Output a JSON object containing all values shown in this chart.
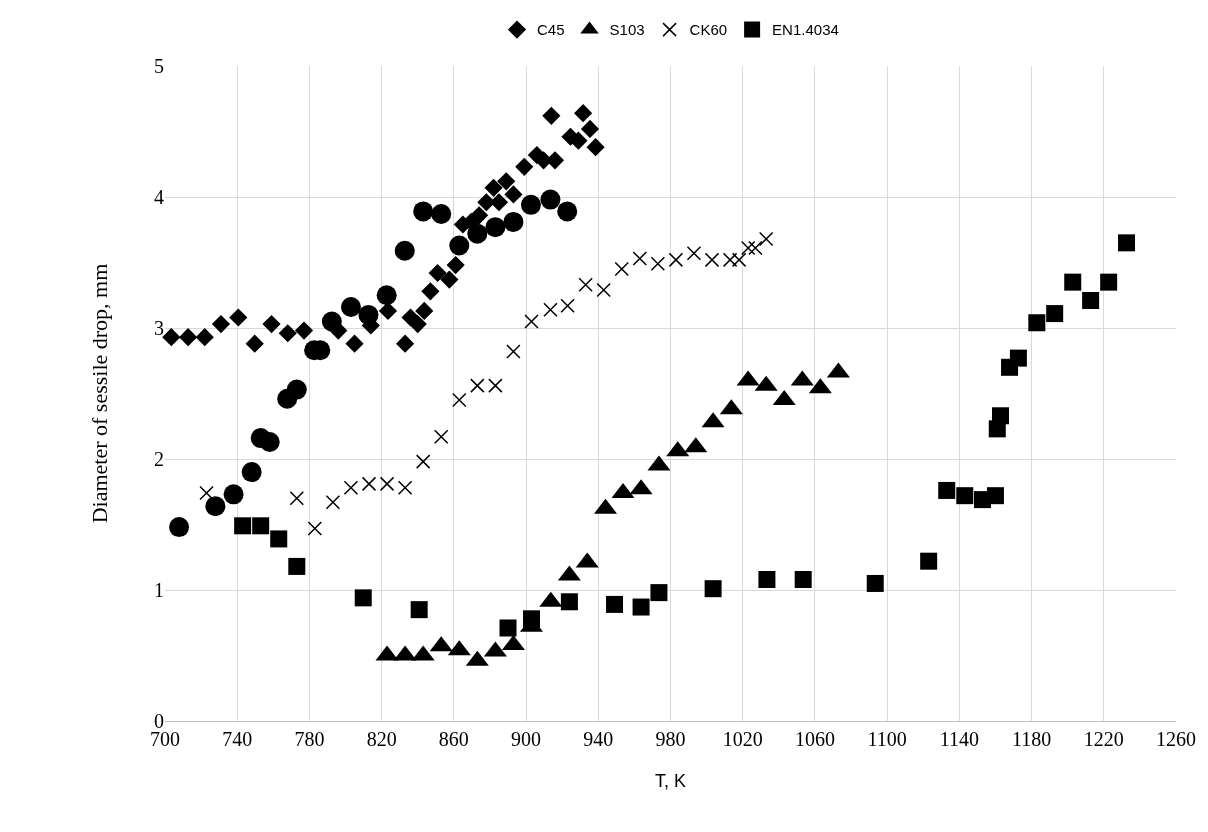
{
  "chart_data": {
    "type": "scatter",
    "xlabel": "T, K",
    "ylabel": "Diameter of sessile drop, mm",
    "xlim": [
      700,
      1260
    ],
    "xticks": [
      700,
      740,
      780,
      820,
      860,
      900,
      940,
      980,
      1020,
      1060,
      1100,
      1140,
      1180,
      1220,
      1260
    ],
    "ylim": [
      0,
      5
    ],
    "yticks": [
      0,
      1,
      2,
      3,
      4,
      5
    ],
    "grid": true,
    "legend": "top",
    "series": [
      {
        "color": "#000000",
        "marker": "circle",
        "x": [
          707.8,
          727.9,
          738,
          748,
          753,
          758,
          767.7,
          773,
          782.6,
          786,
          792.4,
          803,
          812.7,
          822.8,
          832.8,
          843,
          853,
          863,
          873,
          883,
          893,
          902.7,
          913.5,
          922.8
        ],
        "values": [
          1.48,
          1.64,
          1.73,
          1.9,
          2.16,
          2.13,
          2.46,
          2.53,
          2.83,
          2.83,
          3.05,
          3.16,
          3.1,
          3.25,
          3.59,
          3.89,
          3.87,
          3.63,
          3.72,
          3.77,
          3.81,
          3.94,
          3.98,
          3.89
        ]
      },
      {
        "name": "C45",
        "color": "#000000",
        "marker": "diamond",
        "x": [
          703.5,
          712.8,
          722,
          731,
          740.6,
          749.7,
          759,
          768,
          777,
          796,
          805,
          814,
          823.5,
          833,
          836,
          840,
          843.6,
          847,
          851,
          857.5,
          861,
          865,
          869.6,
          874,
          878,
          882,
          885,
          889,
          893,
          899,
          906,
          909.7,
          914,
          916,
          924.6,
          929,
          931.6,
          935.4,
          938.5
        ],
        "values": [
          2.93,
          2.93,
          2.93,
          3.03,
          3.08,
          2.88,
          3.03,
          2.96,
          2.98,
          2.98,
          2.88,
          3.02,
          3.13,
          2.88,
          3.08,
          3.03,
          3.13,
          3.28,
          3.42,
          3.37,
          3.48,
          3.79,
          3.81,
          3.86,
          3.96,
          4.07,
          3.96,
          4.12,
          4.02,
          4.23,
          4.32,
          4.28,
          4.62,
          4.28,
          4.46,
          4.43,
          4.64,
          4.52,
          4.38
        ]
      },
      {
        "name": "S103",
        "color": "#000000",
        "marker": "triangle",
        "x": [
          823,
          833,
          843,
          853,
          863,
          873,
          883,
          893,
          903,
          913.7,
          924,
          933.9,
          944,
          953.7,
          963.7,
          973.6,
          984,
          994,
          1003.6,
          1013.7,
          1023,
          1033,
          1043,
          1053,
          1063,
          1073
        ],
        "values": [
          0.5,
          0.5,
          0.5,
          0.57,
          0.54,
          0.46,
          0.53,
          0.58,
          0.72,
          0.91,
          1.11,
          1.21,
          1.62,
          1.74,
          1.77,
          1.95,
          2.06,
          2.09,
          2.28,
          2.38,
          2.6,
          2.56,
          2.45,
          2.6,
          2.54,
          2.66
        ]
      },
      {
        "name": "CK60",
        "color": "#000000",
        "marker": "cross",
        "x": [
          723,
          773,
          783,
          793,
          803,
          813,
          823,
          833,
          843,
          853,
          863,
          873,
          883,
          893,
          903,
          913.5,
          923,
          933,
          943,
          953,
          963,
          973,
          983,
          993,
          1003,
          1013,
          1018,
          1023,
          1027,
          1033
        ],
        "values": [
          1.74,
          1.7,
          1.47,
          1.67,
          1.78,
          1.81,
          1.81,
          1.78,
          1.98,
          2.17,
          2.45,
          2.56,
          2.56,
          2.82,
          3.05,
          3.14,
          3.17,
          3.33,
          3.29,
          3.45,
          3.53,
          3.49,
          3.52,
          3.57,
          3.52,
          3.52,
          3.52,
          3.61,
          3.61,
          3.68
        ]
      },
      {
        "name": "EN1.4034",
        "color": "#000000",
        "marker": "square",
        "x": [
          743,
          753,
          763,
          773,
          809.8,
          840.8,
          890,
          903,
          924,
          949,
          963.7,
          973.6,
          1003.6,
          1033.4,
          1053.5,
          1093.4,
          1123,
          1133,
          1143,
          1152.8,
          1160,
          1161,
          1162.8,
          1167.8,
          1172.7,
          1182.9,
          1192.8,
          1202.8,
          1212.7,
          1222.7,
          1232.6
        ],
        "values": [
          1.49,
          1.49,
          1.39,
          1.18,
          0.94,
          0.85,
          0.71,
          0.78,
          0.91,
          0.89,
          0.87,
          0.98,
          1.01,
          1.08,
          1.08,
          1.05,
          1.22,
          1.76,
          1.72,
          1.69,
          1.72,
          2.23,
          2.33,
          2.7,
          2.77,
          3.04,
          3.11,
          3.35,
          3.21,
          3.35,
          3.65
        ]
      }
    ]
  }
}
